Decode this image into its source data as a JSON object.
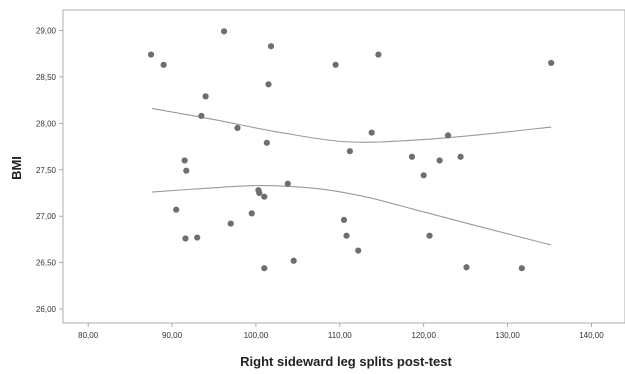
{
  "chart_data": {
    "type": "scatter",
    "title": "",
    "xlabel": "Right sideward leg splits post-test",
    "ylabel": "BMI",
    "xlim": [
      77,
      144
    ],
    "ylim": [
      25.85,
      29.22
    ],
    "x_ticks": [
      "80,00",
      "90,00",
      "100,00",
      "110,00",
      "120,00",
      "130,00",
      "140,00"
    ],
    "x_tick_values": [
      80,
      90,
      100,
      110,
      120,
      130,
      140
    ],
    "y_ticks": [
      "26,00",
      "26,50",
      "27,00",
      "27,50",
      "28,00",
      "28,50",
      "29,00"
    ],
    "y_tick_values": [
      26.0,
      26.5,
      27.0,
      27.5,
      28.0,
      28.5,
      29.0
    ],
    "grid": false,
    "legend": "none",
    "points": [
      {
        "x": 87.5,
        "y": 28.74
      },
      {
        "x": 89.0,
        "y": 28.63
      },
      {
        "x": 90.5,
        "y": 27.07
      },
      {
        "x": 91.5,
        "y": 27.6
      },
      {
        "x": 91.7,
        "y": 27.49
      },
      {
        "x": 91.6,
        "y": 26.76
      },
      {
        "x": 93.0,
        "y": 26.77
      },
      {
        "x": 93.5,
        "y": 28.08
      },
      {
        "x": 94.0,
        "y": 28.29
      },
      {
        "x": 96.2,
        "y": 28.99
      },
      {
        "x": 97.0,
        "y": 26.92
      },
      {
        "x": 97.8,
        "y": 27.95
      },
      {
        "x": 99.5,
        "y": 27.03
      },
      {
        "x": 100.3,
        "y": 27.28
      },
      {
        "x": 100.4,
        "y": 27.25
      },
      {
        "x": 101.0,
        "y": 27.21
      },
      {
        "x": 101.0,
        "y": 26.44
      },
      {
        "x": 101.3,
        "y": 27.79
      },
      {
        "x": 101.5,
        "y": 28.42
      },
      {
        "x": 101.8,
        "y": 28.83
      },
      {
        "x": 103.8,
        "y": 27.35
      },
      {
        "x": 104.5,
        "y": 26.52
      },
      {
        "x": 109.5,
        "y": 28.63
      },
      {
        "x": 110.5,
        "y": 26.96
      },
      {
        "x": 110.8,
        "y": 26.79
      },
      {
        "x": 111.2,
        "y": 27.7
      },
      {
        "x": 112.2,
        "y": 26.63
      },
      {
        "x": 113.8,
        "y": 27.9
      },
      {
        "x": 114.6,
        "y": 28.74
      },
      {
        "x": 118.6,
        "y": 27.64
      },
      {
        "x": 120.0,
        "y": 27.44
      },
      {
        "x": 120.7,
        "y": 26.79
      },
      {
        "x": 121.9,
        "y": 27.6
      },
      {
        "x": 122.9,
        "y": 27.87
      },
      {
        "x": 124.4,
        "y": 27.64
      },
      {
        "x": 125.1,
        "y": 26.45
      },
      {
        "x": 131.7,
        "y": 26.44
      },
      {
        "x": 135.2,
        "y": 28.65
      }
    ],
    "curves": [
      {
        "points": [
          {
            "x": 87.6,
            "y": 28.16
          },
          {
            "x": 95.0,
            "y": 28.04
          },
          {
            "x": 103.0,
            "y": 27.9
          },
          {
            "x": 111.0,
            "y": 27.8
          },
          {
            "x": 119.0,
            "y": 27.82
          },
          {
            "x": 127.0,
            "y": 27.88
          },
          {
            "x": 135.2,
            "y": 27.96
          }
        ]
      },
      {
        "points": [
          {
            "x": 87.6,
            "y": 27.26
          },
          {
            "x": 94.0,
            "y": 27.3
          },
          {
            "x": 100.5,
            "y": 27.33
          },
          {
            "x": 107.0,
            "y": 27.3
          },
          {
            "x": 113.0,
            "y": 27.21
          },
          {
            "x": 119.0,
            "y": 27.07
          },
          {
            "x": 127.0,
            "y": 26.88
          },
          {
            "x": 135.2,
            "y": 26.69
          }
        ]
      }
    ],
    "colors": {
      "point": "#6e6e6e",
      "curve": "#9a9a9a",
      "frame": "#9a9a9a"
    }
  }
}
